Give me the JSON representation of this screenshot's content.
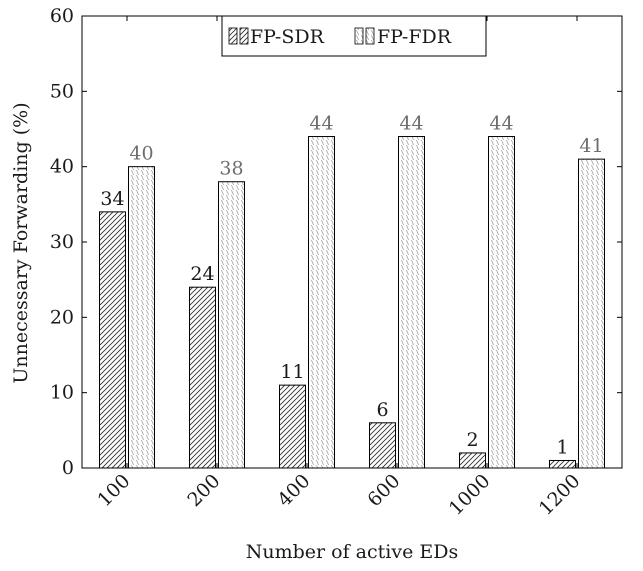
{
  "chart_data": {
    "type": "bar",
    "categories": [
      "100",
      "200",
      "400",
      "600",
      "1000",
      "1200"
    ],
    "series": [
      {
        "name": "FP-SDR",
        "values": [
          34,
          24,
          11,
          6,
          2,
          1
        ],
        "pattern": "north-east-lines",
        "color": "#222222"
      },
      {
        "name": "FP-FDR",
        "values": [
          40,
          38,
          44,
          44,
          44,
          41
        ],
        "pattern": "dots",
        "color": "#777777"
      }
    ],
    "xlabel": "Number of active EDs",
    "ylabel": "Unnecessary Forwarding (%)",
    "ylim": [
      0,
      60
    ],
    "yticks": [
      0,
      10,
      20,
      30,
      40,
      50,
      60
    ],
    "legend_position": "top-center",
    "grid": false,
    "data_labels": true
  }
}
